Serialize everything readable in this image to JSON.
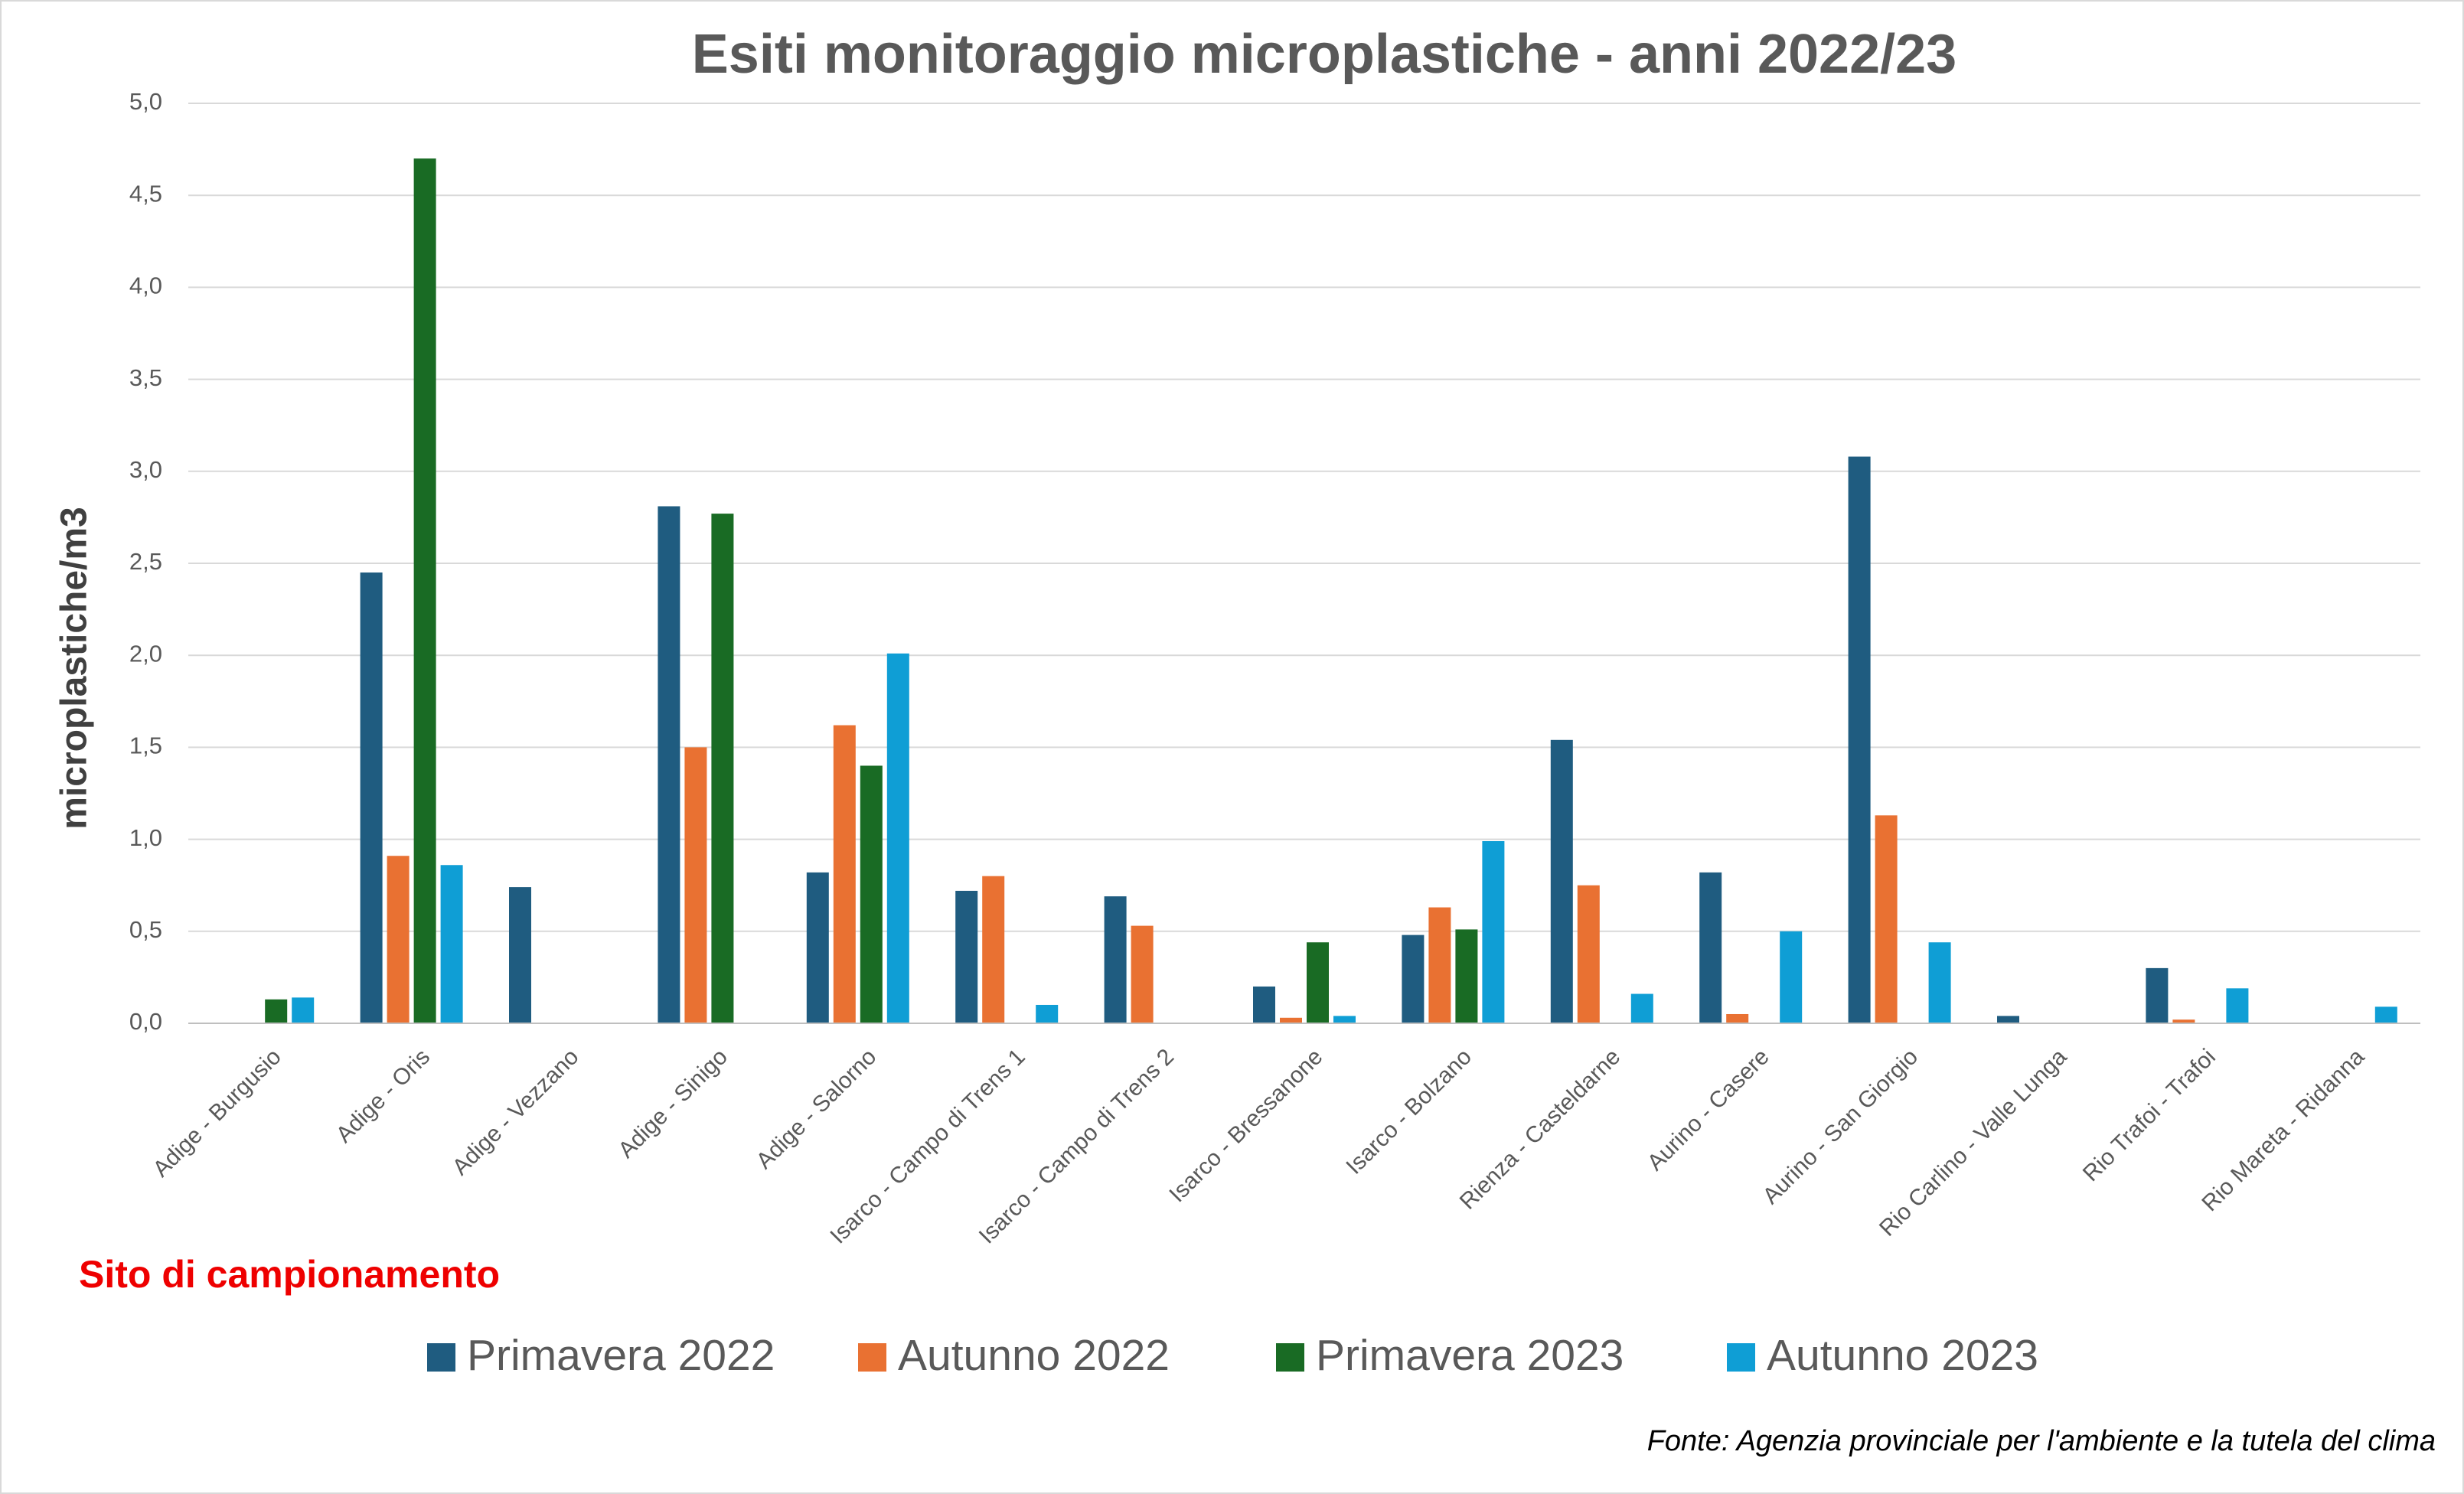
{
  "chart_data": {
    "type": "bar",
    "title": "Esiti monitoraggio microplastiche - anni 2022/23",
    "y_label": "microplastiche/m3",
    "x_label": "Sito di campionamento",
    "source": "Fonte: Agenzia provinciale per l'ambiente e la tutela del clima",
    "categories": [
      "Adige - Burgusio",
      "Adige - Oris",
      "Adige - Vezzano",
      "Adige - Sinigo",
      "Adige - Salorno",
      "Isarco - Campo di Trens 1",
      "Isarco - Campo di Trens 2",
      "Isarco - Bressanone",
      "Isarco - Bolzano",
      "Rienza - Casteldarne",
      "Aurino - Casere",
      "Aurino - San Giorgio",
      "Rio Carlino - Valle Lunga",
      "Rio Trafoi - Trafoi",
      "Rio Mareta - Ridanna"
    ],
    "series": [
      {
        "name": "Primavera 2022",
        "color": "#1f5c80",
        "values": [
          null,
          2.45,
          0.74,
          2.81,
          0.82,
          0.72,
          0.69,
          0.2,
          0.48,
          1.54,
          0.82,
          3.08,
          0.04,
          0.3,
          null
        ]
      },
      {
        "name": "Autunno 2022",
        "color": "#e97132",
        "values": [
          null,
          0.91,
          null,
          1.5,
          1.62,
          0.8,
          0.53,
          0.03,
          0.63,
          0.75,
          0.05,
          1.13,
          null,
          0.02,
          null
        ]
      },
      {
        "name": "Primavera 2023",
        "color": "#196b24",
        "values": [
          0.13,
          4.7,
          null,
          2.77,
          1.4,
          null,
          null,
          0.44,
          0.51,
          null,
          null,
          null,
          null,
          null,
          null
        ]
      },
      {
        "name": "Autunno 2023",
        "color": "#0f9ed5",
        "values": [
          0.14,
          0.86,
          null,
          null,
          2.01,
          0.1,
          null,
          0.04,
          0.99,
          0.16,
          0.5,
          0.44,
          null,
          0.19,
          0.09
        ]
      }
    ],
    "ylim": [
      0,
      5
    ],
    "yticks": [
      {
        "value": 0,
        "label": "0,0"
      },
      {
        "value": 0.5,
        "label": "0,5"
      },
      {
        "value": 1,
        "label": "1,0"
      },
      {
        "value": 1.5,
        "label": "1,5"
      },
      {
        "value": 2,
        "label": "2,0"
      },
      {
        "value": 2.5,
        "label": "2,5"
      },
      {
        "value": 3,
        "label": "3,0"
      },
      {
        "value": 3.5,
        "label": "3,5"
      },
      {
        "value": 4,
        "label": "4,0"
      },
      {
        "value": 4.5,
        "label": "4,5"
      },
      {
        "value": 5,
        "label": "5,0"
      }
    ],
    "grid": true
  }
}
